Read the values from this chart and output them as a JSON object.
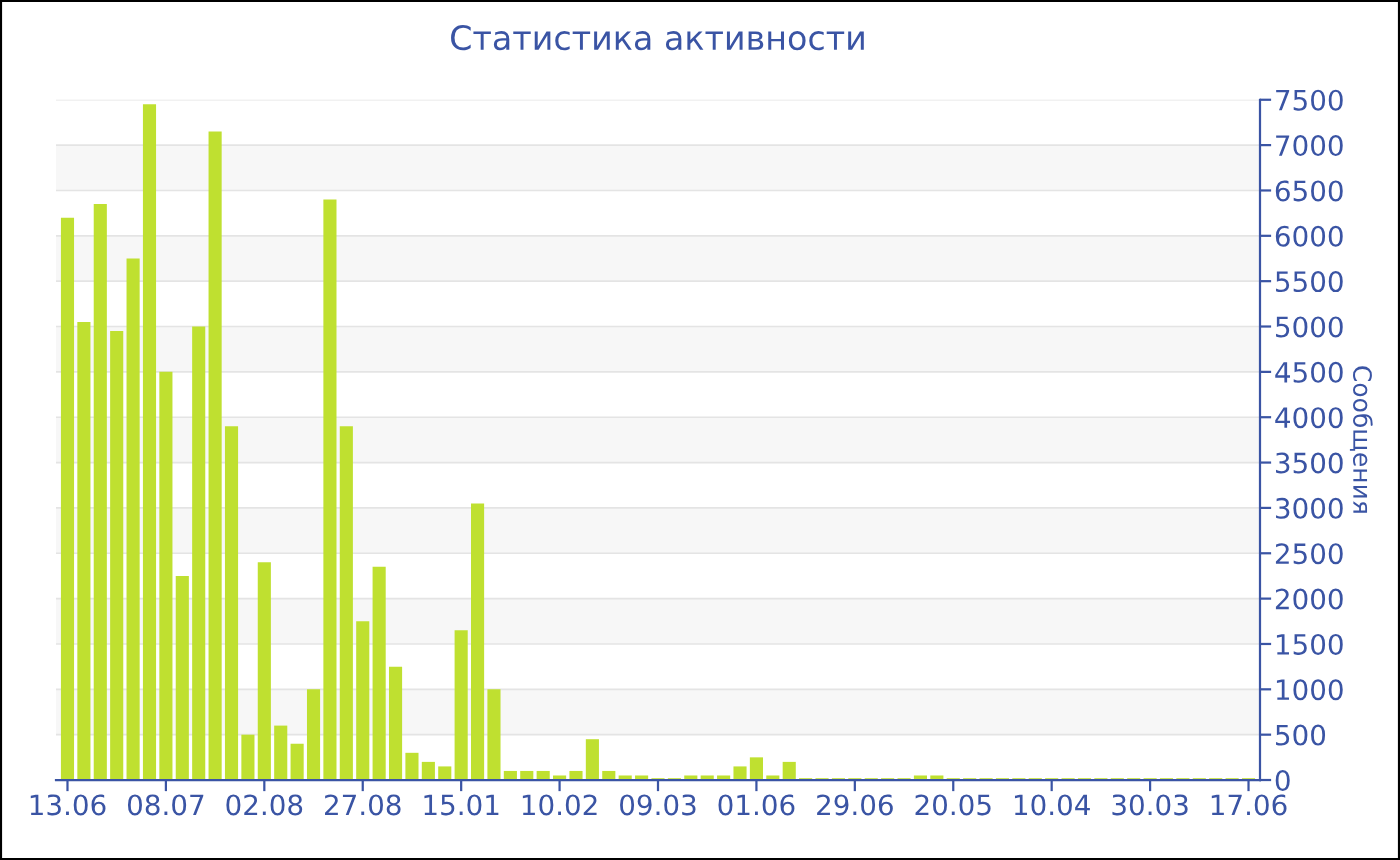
{
  "chart_data": {
    "type": "bar",
    "title": "Статистика активности",
    "ylabel": "Сообщения",
    "categories": [
      "13.06",
      null,
      null,
      null,
      null,
      null,
      "08.07",
      null,
      null,
      null,
      null,
      null,
      "02.08",
      null,
      null,
      null,
      null,
      null,
      "27.08",
      null,
      null,
      null,
      null,
      null,
      "15.01",
      null,
      null,
      null,
      null,
      null,
      "10.02",
      null,
      null,
      null,
      null,
      null,
      "09.03",
      null,
      null,
      null,
      null,
      null,
      "01.06",
      null,
      null,
      null,
      null,
      null,
      "29.06",
      null,
      null,
      null,
      null,
      null,
      "20.05",
      null,
      null,
      null,
      null,
      null,
      "10.04",
      null,
      null,
      null,
      null,
      null,
      "30.03",
      null,
      null,
      null,
      null,
      null,
      "17.06"
    ],
    "values": [
      6200,
      5050,
      6350,
      4950,
      5750,
      7450,
      4500,
      2250,
      5000,
      7150,
      3900,
      500,
      2400,
      600,
      400,
      1000,
      6400,
      3900,
      1750,
      2350,
      1250,
      300,
      200,
      150,
      1650,
      3050,
      1000,
      100,
      100,
      100,
      50,
      100,
      450,
      100,
      50,
      50,
      20,
      20,
      50,
      50,
      50,
      150,
      250,
      50,
      200,
      20,
      20,
      20,
      20,
      20,
      20,
      20,
      50,
      50,
      20,
      20,
      20,
      20,
      20,
      20,
      20,
      20,
      20,
      20,
      20,
      20,
      20,
      20,
      20,
      20,
      20,
      20,
      20
    ],
    "color": "#bfe030",
    "ylim": [
      0,
      7500
    ],
    "yticks": [
      0,
      500,
      1000,
      1500,
      2000,
      2500,
      3000,
      3500,
      4000,
      4500,
      5000,
      5500,
      6000,
      6500,
      7000,
      7500
    ],
    "grid": "y"
  }
}
